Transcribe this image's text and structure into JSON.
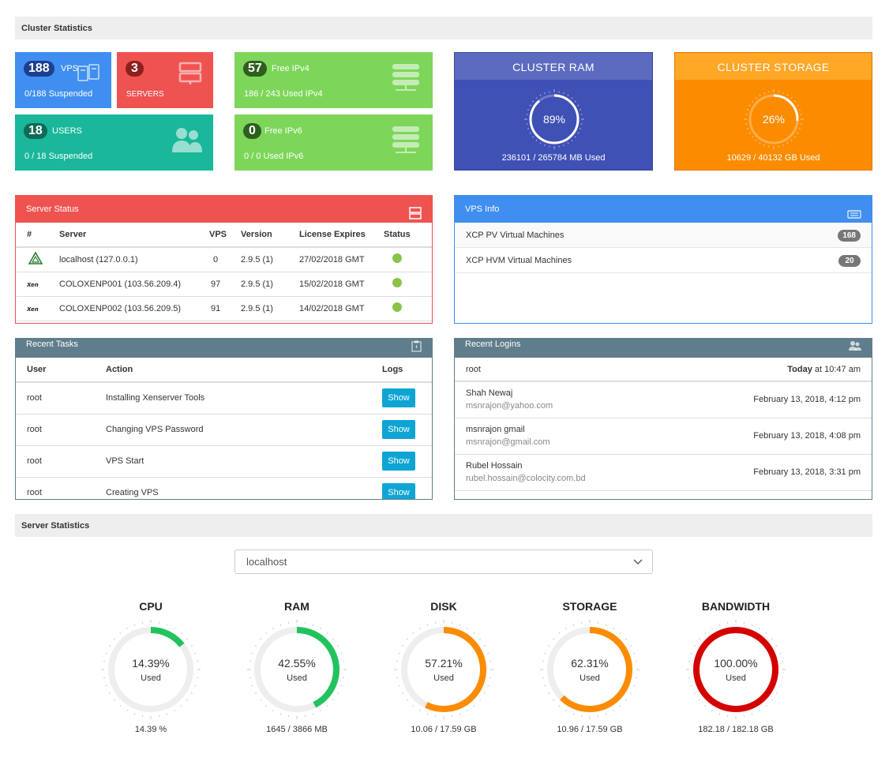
{
  "cluster_statistics": {
    "title": "Cluster Statistics",
    "vps": {
      "count": "188",
      "label": "VPS",
      "sub": "0/188 Suspended",
      "color": "#3f8ef0"
    },
    "servers": {
      "count": "3",
      "label": "SERVERS",
      "color": "#ef5350"
    },
    "users": {
      "count": "18",
      "label": "USERS",
      "sub": "0 / 18 Suspended",
      "color": "#1ab79a"
    },
    "ipv4": {
      "count": "57",
      "label": "Free IPv4",
      "sub": "186 / 243 Used IPv4",
      "color": "#7dd65a"
    },
    "ipv6": {
      "count": "0",
      "label": "Free IPv6",
      "sub": "0 / 0 Used IPv6",
      "color": "#7dd65a"
    },
    "ram": {
      "title": "CLUSTER RAM",
      "percent": "89%",
      "fraction": 0.89,
      "used": "236101 / 265784 MB Used",
      "color": "#3f51b5",
      "head_color": "#5c6bc0"
    },
    "storage": {
      "title": "CLUSTER STORAGE",
      "percent": "26%",
      "fraction": 0.26,
      "used": "10629 / 40132 GB Used",
      "color": "#fb8c00",
      "head_color": "#ffa726"
    }
  },
  "server_status": {
    "title": "Server Status",
    "headers": [
      "#",
      "Server",
      "VPS",
      "Version",
      "License Expires",
      "Status"
    ],
    "rows": [
      {
        "icon": "tree-logo-icon",
        "server": "localhost (127.0.0.1)",
        "vps": "0",
        "version": "2.9.5 (1)",
        "expires": "27/02/2018 GMT"
      },
      {
        "icon": "xen-logo-icon",
        "server": "COLOXENP001 (103.56.209.4)",
        "vps": "97",
        "version": "2.9.5 (1)",
        "expires": "15/02/2018 GMT"
      },
      {
        "icon": "xen-logo-icon",
        "server": "COLOXENP002 (103.56.209.5)",
        "vps": "91",
        "version": "2.9.5 (1)",
        "expires": "14/02/2018 GMT"
      }
    ]
  },
  "vps_info": {
    "title": "VPS Info",
    "rows": [
      {
        "label": "XCP PV Virtual Machines",
        "count": "168"
      },
      {
        "label": "XCP HVM Virtual Machines",
        "count": "20"
      }
    ]
  },
  "recent_tasks": {
    "title": "Recent Tasks",
    "headers": [
      "User",
      "Action",
      "Logs"
    ],
    "rows": [
      {
        "user": "root",
        "action": "Installing Xenserver Tools",
        "button": "Show"
      },
      {
        "user": "root",
        "action": "Changing VPS Password",
        "button": "Show"
      },
      {
        "user": "root",
        "action": "VPS Start",
        "button": "Show"
      },
      {
        "user": "root",
        "action": "Creating VPS",
        "button": "Show"
      }
    ]
  },
  "recent_logins": {
    "title": "Recent Logins",
    "first": {
      "name": "root",
      "time_bold": "Today",
      "time_rest": " at 10:47 am"
    },
    "rows": [
      {
        "name": "Shah Newaj",
        "email": "msnrajon@yahoo.com",
        "time": "February 13, 2018, 4:12 pm"
      },
      {
        "name": "msnrajon gmail",
        "email": "msnrajon@gmail.com",
        "time": "February 13, 2018, 4:08 pm"
      },
      {
        "name": "Rubel Hossain",
        "email": "rubel.hossain@colocity.com.bd",
        "time": "February 13, 2018, 3:31 pm"
      }
    ]
  },
  "server_statistics": {
    "title": "Server Statistics",
    "selected_server": "localhost",
    "used_label": "Used",
    "gauges": [
      {
        "title": "CPU",
        "percent_text": "14.39%",
        "fraction": 0.1439,
        "footer": "14.39 %",
        "color": "#22c35e"
      },
      {
        "title": "RAM",
        "percent_text": "42.55%",
        "fraction": 0.4255,
        "footer": "1645 / 3866 MB",
        "color": "#22c35e"
      },
      {
        "title": "DISK",
        "percent_text": "57.21%",
        "fraction": 0.5721,
        "footer": "10.06 / 17.59 GB",
        "color": "#fb8c00"
      },
      {
        "title": "STORAGE",
        "percent_text": "62.31%",
        "fraction": 0.6231,
        "footer": "10.96 / 17.59 GB",
        "color": "#fb8c00"
      },
      {
        "title": "BANDWIDTH",
        "percent_text": "100.00%",
        "fraction": 1.0,
        "footer": "182.18 / 182.18 GB",
        "color": "#d50000"
      }
    ]
  }
}
